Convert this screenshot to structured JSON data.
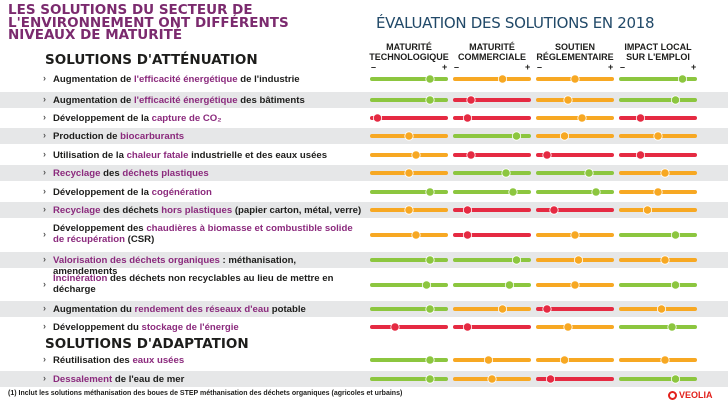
{
  "title": "Les solutions du secteur de l'environnement ont différents niveaux de maturité",
  "eval_title": "ÉVALUATION DES SOLUTIONS EN 2018",
  "columns": [
    {
      "label": "MATURITÉ TECHNOLOGIQUE",
      "minus": "–",
      "plus": "+"
    },
    {
      "label": "MATURITÉ COMMERCIALE",
      "minus": "–",
      "plus": "+"
    },
    {
      "label": "SOUTIEN RÉGLEMENTAIRE",
      "minus": "–",
      "plus": "+"
    },
    {
      "label": "IMPACT LOCAL SUR L'EMPLOI",
      "minus": "–",
      "plus": "+"
    }
  ],
  "sections": [
    {
      "title": "SOLUTIONS D'ATTÉNUATION",
      "rows": [
        {
          "parts": [
            {
              "t": "Augmentation de "
            },
            {
              "t": "l'efficacité énergétique",
              "hl": true
            },
            {
              "t": " de l'industrie"
            }
          ],
          "ratings": [
            0.8,
            0.65,
            0.5,
            0.85
          ]
        },
        {
          "parts": [
            {
              "t": "Augmentation de "
            },
            {
              "t": "l'efficacité énergétique",
              "hl": true
            },
            {
              "t": " des bâtiments"
            }
          ],
          "ratings": [
            0.8,
            0.2,
            0.4,
            0.75
          ]
        },
        {
          "parts": [
            {
              "t": "Développement de la "
            },
            {
              "t": "capture de CO₂",
              "hl": true
            }
          ],
          "ratings": [
            0.05,
            0.15,
            0.6,
            0.25
          ]
        },
        {
          "parts": [
            {
              "t": "Production de "
            },
            {
              "t": "biocarburants",
              "hl": true
            }
          ],
          "ratings": [
            0.5,
            0.85,
            0.35,
            0.5
          ]
        },
        {
          "parts": [
            {
              "t": "Utilisation de la "
            },
            {
              "t": "chaleur fatale",
              "hl": true
            },
            {
              "t": " industrielle et des eaux usées"
            }
          ],
          "ratings": [
            0.6,
            0.2,
            0.1,
            0.25
          ]
        },
        {
          "parts": [
            {
              "t": "Recyclage",
              "hl": true
            },
            {
              "t": " des "
            },
            {
              "t": "déchets plastiques",
              "hl": true
            }
          ],
          "ratings": [
            0.5,
            0.7,
            0.7,
            0.6
          ]
        },
        {
          "parts": [
            {
              "t": "Développement de la "
            },
            {
              "t": "cogénération",
              "hl": true
            }
          ],
          "ratings": [
            0.8,
            0.8,
            0.8,
            0.5
          ]
        },
        {
          "parts": [
            {
              "t": "Recyclage",
              "hl": true
            },
            {
              "t": " des déchets "
            },
            {
              "t": "hors plastiques",
              "hl": true
            },
            {
              "t": " (papier carton, métal, verre)"
            }
          ],
          "ratings": [
            0.5,
            0.15,
            0.2,
            0.35
          ]
        },
        {
          "parts": [
            {
              "t": "Développement des "
            },
            {
              "t": "chaudières à biomasse et combustible solide de récupération",
              "hl": true
            },
            {
              "t": " (CSR)"
            }
          ],
          "ratings": [
            0.6,
            0.15,
            0.5,
            0.75
          ]
        },
        {
          "parts": [
            {
              "t": "Valorisation des déchets organiques",
              "hl": true
            },
            {
              "t": " : méthanisation, amendements"
            }
          ],
          "ratings": [
            0.8,
            0.85,
            0.55,
            0.6
          ]
        },
        {
          "parts": [
            {
              "t": "Incinération",
              "hl": true
            },
            {
              "t": " des déchets non recyclables au lieu de mettre en décharge"
            }
          ],
          "ratings": [
            0.75,
            0.75,
            0.5,
            0.75
          ]
        },
        {
          "parts": [
            {
              "t": "Augmentation du "
            },
            {
              "t": "rendement des réseaux d'eau",
              "hl": true
            },
            {
              "t": " potable"
            }
          ],
          "ratings": [
            0.8,
            0.65,
            0.1,
            0.55
          ]
        },
        {
          "parts": [
            {
              "t": "Développement du "
            },
            {
              "t": "stockage de l'énergie",
              "hl": true
            }
          ],
          "ratings": [
            0.3,
            0.15,
            0.4,
            0.7
          ]
        }
      ]
    },
    {
      "title": "SOLUTIONS D'ADAPTATION",
      "rows": [
        {
          "parts": [
            {
              "t": "Réutilisation des "
            },
            {
              "t": "eaux usées",
              "hl": true
            }
          ],
          "ratings": [
            0.8,
            0.45,
            0.35,
            0.6
          ]
        },
        {
          "parts": [
            {
              "t": "Dessalement",
              "hl": true
            },
            {
              "t": " de l'eau de mer"
            }
          ],
          "ratings": [
            0.8,
            0.5,
            0.15,
            0.75
          ]
        }
      ]
    }
  ],
  "footnote": "(1) Inclut les solutions méthanisation des boues de STEP méthanisation des déchets organiques (agricoles et urbains)",
  "brand": "VEOLIA",
  "colors": {
    "title": "#7b2a6e",
    "highlight": "#8b2a7d",
    "green": "#8cc63f",
    "orange": "#f7a823",
    "red": "#e52a42",
    "heading": "#214968",
    "shade": "#e6e7e8"
  }
}
